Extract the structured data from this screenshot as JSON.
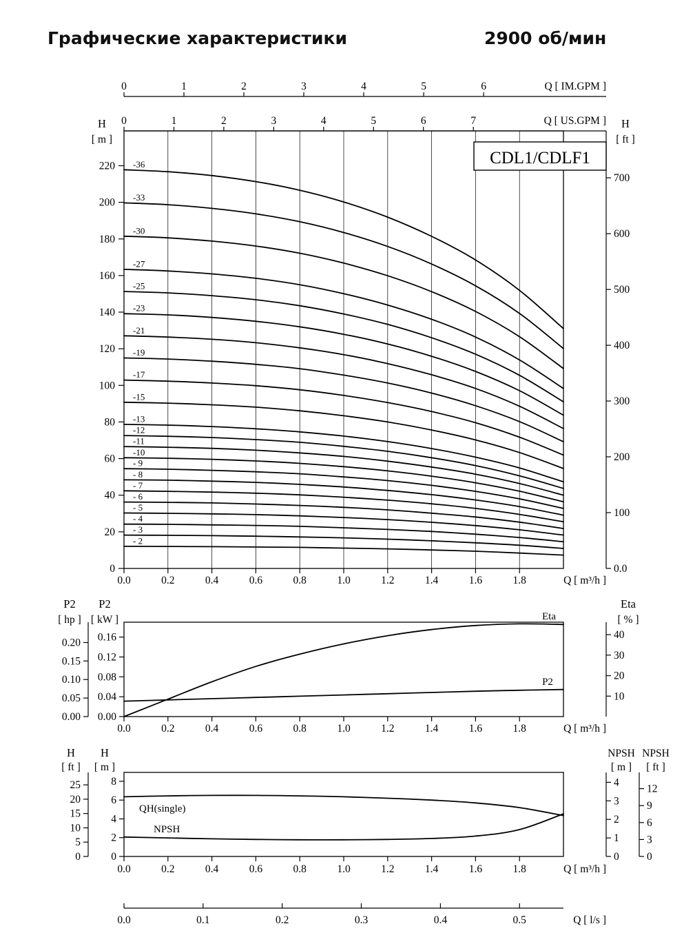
{
  "header": {
    "title": "Графические характеристики",
    "rpm": "2900 об/мин"
  },
  "colors": {
    "line": "#000000",
    "background": "#ffffff"
  },
  "chart_data": [
    {
      "id": "main_qh",
      "type": "line",
      "title": "CDL1/CDLF1",
      "x": [
        0,
        0.2,
        0.4,
        0.6,
        0.8,
        1.0,
        1.2,
        1.4,
        1.6,
        1.8,
        2.0
      ],
      "x_range": [
        0,
        2.0
      ],
      "x_ticks": [
        "0.0",
        "0.2",
        "0.4",
        "0.6",
        "0.8",
        "1.0",
        "1.2",
        "1.4",
        "1.6",
        "1.8"
      ],
      "x_label": "Q [ m³/h ]",
      "grid": "vertical",
      "y_left": {
        "name": "H",
        "unit": "[ m ]",
        "ticks": [
          0,
          20,
          40,
          60,
          80,
          100,
          120,
          140,
          160,
          180,
          200,
          220
        ],
        "range": [
          0,
          239
        ]
      },
      "y_right": {
        "name": "H",
        "unit": "[ ft ]",
        "ticks": [
          "0.0",
          "100",
          "200",
          "300",
          "400",
          "500",
          "600",
          "700"
        ],
        "ft_per_m": 3.2808
      },
      "top_axes": [
        {
          "label": "Q [ IM.GPM ]",
          "ticks": [
            0,
            1,
            2,
            3,
            4,
            5,
            6
          ],
          "m3h_per_unit": 0.27276
        },
        {
          "label": "Q [ US.GPM ]",
          "ticks": [
            0,
            1,
            2,
            3,
            4,
            5,
            6,
            7
          ],
          "m3h_per_unit": 0.22712
        }
      ],
      "series": [
        {
          "label": "-36",
          "values": [
            217.8,
            216.7,
            214.6,
            211.3,
            206.6,
            200.2,
            191.9,
            181.4,
            168.5,
            151.9,
            131.0
          ]
        },
        {
          "label": "-33",
          "values": [
            199.7,
            198.7,
            196.7,
            193.7,
            189.4,
            183.5,
            175.9,
            166.3,
            154.4,
            139.3,
            120.1
          ]
        },
        {
          "label": "-30",
          "values": [
            181.5,
            180.6,
            178.8,
            176.1,
            172.2,
            166.8,
            159.9,
            151.2,
            140.4,
            126.6,
            109.2
          ]
        },
        {
          "label": "-27",
          "values": [
            163.4,
            162.5,
            160.9,
            158.5,
            155.0,
            150.1,
            143.9,
            136.1,
            126.4,
            113.9,
            98.3
          ]
        },
        {
          "label": "-25",
          "values": [
            151.3,
            150.5,
            149.0,
            146.8,
            143.5,
            139.0,
            133.3,
            126.0,
            117.0,
            105.5,
            91.0
          ]
        },
        {
          "label": "-23",
          "values": [
            139.2,
            138.5,
            137.1,
            135.0,
            132.0,
            127.9,
            122.6,
            115.9,
            107.6,
            97.1,
            83.7
          ]
        },
        {
          "label": "-21",
          "values": [
            127.1,
            126.4,
            125.2,
            123.3,
            120.5,
            116.8,
            111.9,
            105.8,
            98.3,
            88.6,
            76.4
          ]
        },
        {
          "label": "-19",
          "values": [
            115.0,
            114.4,
            113.2,
            111.5,
            109.1,
            105.6,
            101.3,
            95.8,
            88.9,
            80.2,
            69.2
          ]
        },
        {
          "label": "-17",
          "values": [
            102.9,
            102.3,
            101.3,
            99.8,
            97.6,
            94.5,
            90.6,
            85.7,
            79.6,
            71.7,
            61.9
          ]
        },
        {
          "label": "-15",
          "values": [
            90.8,
            90.3,
            89.4,
            88.1,
            86.1,
            83.4,
            80.0,
            75.6,
            70.2,
            63.3,
            54.6
          ]
        },
        {
          "label": "-13",
          "values": [
            78.7,
            78.3,
            77.5,
            76.3,
            74.6,
            72.3,
            69.3,
            65.5,
            60.8,
            54.9,
            47.3
          ]
        },
        {
          "label": "-12",
          "values": [
            72.6,
            72.2,
            71.5,
            70.4,
            68.9,
            66.7,
            64.0,
            60.5,
            56.2,
            50.6,
            43.7
          ]
        },
        {
          "label": "-11",
          "values": [
            66.6,
            66.2,
            65.6,
            64.6,
            63.1,
            61.2,
            58.6,
            55.4,
            51.5,
            46.4,
            40.0
          ]
        },
        {
          "label": "-10",
          "values": [
            60.5,
            60.2,
            59.6,
            58.7,
            57.4,
            55.6,
            53.3,
            50.4,
            46.8,
            42.2,
            36.4
          ]
        },
        {
          "label": "- 9",
          "values": [
            54.5,
            54.2,
            53.6,
            52.8,
            51.7,
            50.0,
            48.0,
            45.4,
            42.1,
            38.0,
            32.8
          ]
        },
        {
          "label": "- 8",
          "values": [
            48.4,
            48.2,
            47.7,
            47.0,
            45.9,
            44.5,
            42.6,
            40.3,
            37.4,
            33.8,
            29.1
          ]
        },
        {
          "label": "- 7",
          "values": [
            42.4,
            42.1,
            41.7,
            41.1,
            40.2,
            38.9,
            37.3,
            35.3,
            32.8,
            29.5,
            25.5
          ]
        },
        {
          "label": "- 6",
          "values": [
            36.3,
            36.1,
            35.8,
            35.2,
            34.4,
            33.4,
            32.0,
            30.2,
            28.1,
            25.3,
            21.8
          ]
        },
        {
          "label": "- 5",
          "values": [
            30.3,
            30.1,
            29.8,
            29.4,
            28.7,
            27.8,
            26.7,
            25.2,
            23.4,
            21.1,
            18.2
          ]
        },
        {
          "label": "- 4",
          "values": [
            24.2,
            24.1,
            23.8,
            23.5,
            23.0,
            22.2,
            21.3,
            20.2,
            18.7,
            16.9,
            14.6
          ]
        },
        {
          "label": "- 3",
          "values": [
            18.2,
            18.1,
            17.9,
            17.6,
            17.2,
            16.7,
            16.0,
            15.1,
            14.0,
            12.7,
            10.9
          ]
        },
        {
          "label": "- 2",
          "values": [
            12.1,
            12.0,
            11.9,
            11.7,
            11.5,
            11.1,
            10.7,
            10.1,
            9.4,
            8.4,
            7.3
          ]
        }
      ]
    },
    {
      "id": "power_efficiency",
      "type": "line",
      "x": [
        0,
        0.2,
        0.4,
        0.6,
        0.8,
        1.0,
        1.2,
        1.4,
        1.6,
        1.8,
        2.0
      ],
      "x_ticks": [
        "0.0",
        "0.2",
        "0.4",
        "0.6",
        "0.8",
        "1.0",
        "1.2",
        "1.4",
        "1.6",
        "1.8"
      ],
      "x_label": "Q [ m³/h ]",
      "y_left_outer": {
        "name": "P2",
        "unit": "[ hp ]",
        "ticks": [
          "0.00",
          "0.05",
          "0.10",
          "0.15",
          "0.20"
        ],
        "kw_per_hp": 0.7457
      },
      "y_left_inner": {
        "name": "P2",
        "unit": "[ kW ]",
        "ticks": [
          "0.00",
          "0.04",
          "0.08",
          "0.12",
          "0.16"
        ],
        "range": [
          0,
          0.19
        ]
      },
      "y_right": {
        "name": "Eta",
        "unit": "[ % ]",
        "ticks": [
          "10",
          "20",
          "30",
          "40"
        ],
        "range": [
          0,
          46.1
        ]
      },
      "series": [
        {
          "label": "Eta",
          "axis": "eta",
          "values": [
            0,
            8.5,
            17,
            24.5,
            30.5,
            35.5,
            39.5,
            42.5,
            44.5,
            45.3,
            45.0
          ]
        },
        {
          "label": "P2",
          "axis": "kw",
          "values": [
            0.031,
            0.0335,
            0.036,
            0.0385,
            0.041,
            0.0435,
            0.046,
            0.0485,
            0.051,
            0.053,
            0.0545
          ]
        }
      ]
    },
    {
      "id": "npsh_single_qh",
      "type": "line",
      "x": [
        0,
        0.2,
        0.4,
        0.6,
        0.8,
        1.0,
        1.2,
        1.4,
        1.6,
        1.8,
        2.0
      ],
      "x_ticks": [
        "0.0",
        "0.2",
        "0.4",
        "0.6",
        "0.8",
        "1.0",
        "1.2",
        "1.4",
        "1.6",
        "1.8"
      ],
      "x_label": "Q [ m³/h ]",
      "y_left_outer": {
        "name": "H",
        "unit": "[ ft ]",
        "ticks": [
          "0",
          "5",
          "10",
          "15",
          "20",
          "25"
        ]
      },
      "y_left_inner": {
        "name": "H",
        "unit": "[ m ]",
        "ticks": [
          "0",
          "2",
          "4",
          "6",
          "8"
        ],
        "range": [
          0,
          8.95
        ]
      },
      "y_right_inner": {
        "name": "NPSH",
        "unit": "[ m ]",
        "ticks": [
          "0",
          "1",
          "2",
          "3",
          "4"
        ],
        "range": [
          0,
          4.5
        ]
      },
      "y_right_outer": {
        "name": "NPSH",
        "unit": "[ ft ]",
        "ticks": [
          "0",
          "3",
          "6",
          "9",
          "12"
        ]
      },
      "series": [
        {
          "label": "QH(single)",
          "axis": "m",
          "values": [
            6.35,
            6.45,
            6.5,
            6.5,
            6.45,
            6.35,
            6.2,
            6.0,
            5.7,
            5.2,
            4.35
          ]
        },
        {
          "label": "NPSH",
          "axis": "npsh_m",
          "values": [
            1.05,
            1.0,
            0.95,
            0.92,
            0.9,
            0.9,
            0.92,
            0.97,
            1.1,
            1.45,
            2.3
          ]
        }
      ],
      "bottom_axis": {
        "label": "Q [ l/s ]",
        "ticks": [
          "0.0",
          "0.1",
          "0.2",
          "0.3",
          "0.4",
          "0.5"
        ],
        "m3h_per_unit": 3.6
      }
    }
  ]
}
